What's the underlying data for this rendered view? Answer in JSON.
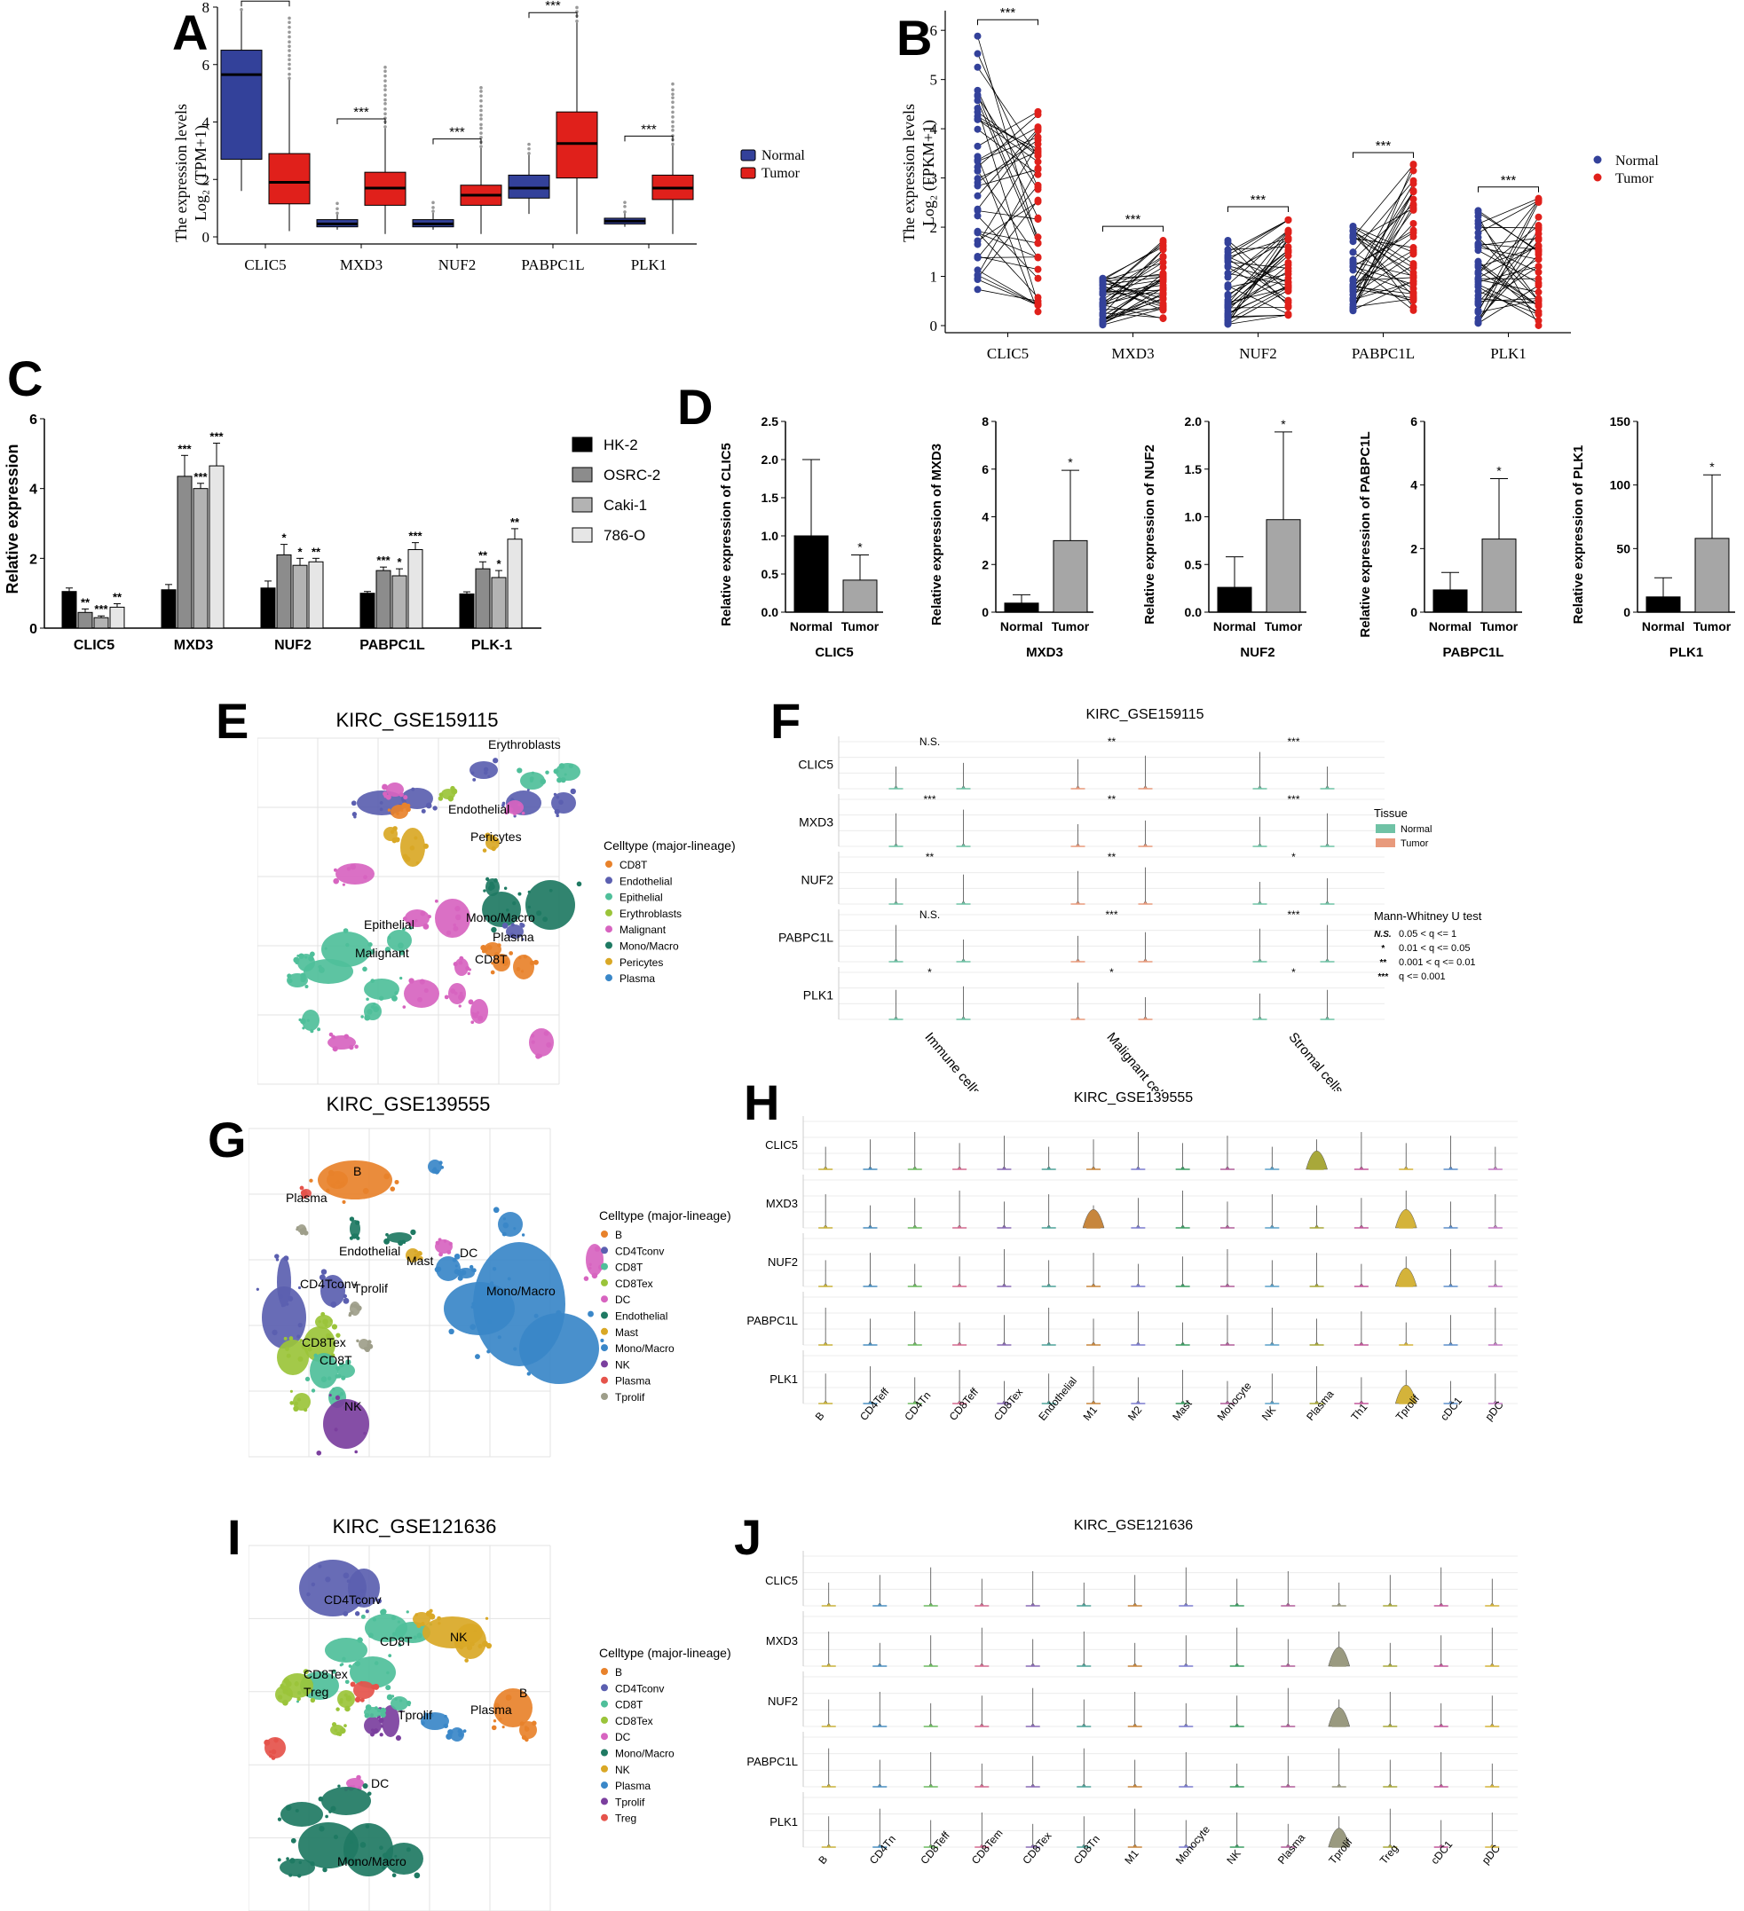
{
  "panel_labels": [
    "A",
    "B",
    "C",
    "D",
    "E",
    "F",
    "G",
    "H",
    "I",
    "J"
  ],
  "colors": {
    "normal": "#33419a",
    "tumor": "#e0201b",
    "bar_hk2": "#000000",
    "bar_osrc": "#8c8c8c",
    "bar_caki": "#b3b3b3",
    "bar_786": "#e6e6e6"
  },
  "chart_data": [
    {
      "id": "A",
      "type": "box",
      "ylabel_line1": "The expression  levels",
      "ylabel_line2": "Log₂ (TPM+1)",
      "categories": [
        "CLIC5",
        "MXD3",
        "NUF2",
        "PABPC1L",
        "PLK1"
      ],
      "yticks": [
        "0",
        "2",
        "4",
        "6",
        "8"
      ],
      "ylim": [
        0,
        8
      ],
      "legend": [
        "Normal",
        "Tumor"
      ],
      "significance": [
        "***",
        "***",
        "***",
        "***",
        "***"
      ],
      "series": [
        {
          "name": "Normal",
          "boxes": [
            [
              1.6,
              2.7,
              5.65,
              6.5,
              7.9
            ],
            [
              0.25,
              0.35,
              0.45,
              0.6,
              0.8
            ],
            [
              0.25,
              0.35,
              0.45,
              0.6,
              0.85
            ],
            [
              0.8,
              1.35,
              1.7,
              2.15,
              2.9
            ],
            [
              0.35,
              0.45,
              0.55,
              0.65,
              0.85
            ]
          ]
        },
        {
          "name": "Tumor",
          "boxes": [
            [
              0.2,
              1.15,
              1.9,
              2.9,
              5.5
            ],
            [
              0.1,
              1.1,
              1.7,
              2.25,
              3.8
            ],
            [
              0.1,
              1.1,
              1.45,
              1.8,
              3.1
            ],
            [
              0.1,
              2.05,
              3.25,
              4.35,
              7.5
            ],
            [
              0.1,
              1.3,
              1.7,
              2.15,
              3.2
            ]
          ]
        }
      ]
    },
    {
      "id": "B",
      "type": "paired-scatter",
      "ylabel_line1": "The expression  levels",
      "ylabel_line2": "Log₂ (FPKM+1)",
      "categories": [
        "CLIC5",
        "MXD3",
        "NUF2",
        "PABPC1L",
        "PLK1"
      ],
      "yticks": [
        "0",
        "1",
        "2",
        "3",
        "4",
        "5",
        "6"
      ],
      "ylim": [
        0,
        6.4
      ],
      "legend": [
        "Normal",
        "Tumor"
      ],
      "significance": [
        "***",
        "***",
        "***",
        "***",
        "***"
      ],
      "normal_range": [
        [
          0.7,
          6.0
        ],
        [
          0.0,
          1.0
        ],
        [
          0.0,
          1.8
        ],
        [
          0.3,
          2.1
        ],
        [
          0.0,
          2.4
        ]
      ],
      "tumor_range": [
        [
          0.1,
          4.6
        ],
        [
          0.1,
          1.8
        ],
        [
          0.2,
          2.2
        ],
        [
          0.3,
          3.3
        ],
        [
          0.0,
          2.6
        ]
      ]
    },
    {
      "id": "C",
      "type": "bar",
      "ylabel": "Relative expression",
      "categories": [
        "CLIC5",
        "MXD3",
        "NUF2",
        "PABPC1L",
        "PLK-1"
      ],
      "yticks": [
        "0",
        "2",
        "4",
        "6"
      ],
      "ylim": [
        0,
        6
      ],
      "series": [
        {
          "name": "HK-2",
          "values": [
            1.05,
            1.1,
            1.15,
            1.0,
            0.98
          ],
          "errors": [
            0.1,
            0.15,
            0.2,
            0.05,
            0.06
          ],
          "stars": [
            "",
            "",
            "",
            "",
            ""
          ]
        },
        {
          "name": "OSRC-2",
          "values": [
            0.45,
            4.35,
            2.1,
            1.65,
            1.7
          ],
          "errors": [
            0.1,
            0.6,
            0.3,
            0.1,
            0.2
          ],
          "stars": [
            "**",
            "***",
            "*",
            "***",
            "**"
          ]
        },
        {
          "name": "Caki-1",
          "values": [
            0.3,
            4.0,
            1.8,
            1.5,
            1.45
          ],
          "errors": [
            0.05,
            0.15,
            0.2,
            0.2,
            0.2
          ],
          "stars": [
            "***",
            "***",
            "*",
            "*",
            "*"
          ]
        },
        {
          "name": "786-O",
          "values": [
            0.6,
            4.65,
            1.9,
            2.25,
            2.55
          ],
          "errors": [
            0.1,
            0.65,
            0.1,
            0.2,
            0.3
          ],
          "stars": [
            "**",
            "***",
            "**",
            "***",
            "**"
          ]
        }
      ]
    },
    {
      "id": "D",
      "type": "bar",
      "subplots": [
        {
          "gene": "CLIC5",
          "ylabel": "Relative expression of CLIC5",
          "yticks": [
            "0.0",
            "0.5",
            "1.0",
            "1.5",
            "2.0",
            "2.5"
          ],
          "ylim": [
            0,
            2.5
          ],
          "categories": [
            "Normal",
            "Tumor"
          ],
          "values": [
            1.0,
            0.42
          ],
          "errors": [
            1.0,
            0.33
          ],
          "stars": [
            "",
            "*"
          ]
        },
        {
          "gene": "MXD3",
          "ylabel": "Relative expression of MXD3",
          "yticks": [
            "0",
            "2",
            "4",
            "6",
            "8"
          ],
          "ylim": [
            0,
            8
          ],
          "categories": [
            "Normal",
            "Tumor"
          ],
          "values": [
            0.38,
            3.0
          ],
          "errors": [
            0.35,
            2.95
          ],
          "stars": [
            "",
            "*"
          ]
        },
        {
          "gene": "NUF2",
          "ylabel": "Relative expression of NUF2",
          "yticks": [
            "0.0",
            "0.5",
            "1.0",
            "1.5",
            "2.0"
          ],
          "ylim": [
            0,
            2
          ],
          "categories": [
            "Normal",
            "Tumor"
          ],
          "values": [
            0.26,
            0.97
          ],
          "errors": [
            0.32,
            0.92
          ],
          "stars": [
            "",
            "*"
          ]
        },
        {
          "gene": "PABPC1L",
          "ylabel": "Relative expression of PABPC1L",
          "yticks": [
            "0",
            "2",
            "4",
            "6"
          ],
          "ylim": [
            0,
            6
          ],
          "categories": [
            "Normal",
            "Tumor"
          ],
          "values": [
            0.7,
            2.3
          ],
          "errors": [
            0.55,
            1.9
          ],
          "stars": [
            "",
            "*"
          ]
        },
        {
          "gene": "PLK1",
          "ylabel": "Relative expression of PLK1",
          "yticks": [
            "0",
            "50",
            "100",
            "150"
          ],
          "ylim": [
            0,
            150
          ],
          "categories": [
            "Normal",
            "Tumor"
          ],
          "values": [
            12,
            58
          ],
          "errors": [
            15,
            50
          ],
          "stars": [
            "",
            "*"
          ]
        }
      ]
    },
    {
      "id": "E",
      "type": "scatter",
      "title": "KIRC_GSE159115",
      "legend_title": "Celltype (major-lineage)",
      "legend": [
        "CD8T",
        "Endothelial",
        "Epithelial",
        "Erythroblasts",
        "Malignant",
        "Mono/Macro",
        "Pericytes",
        "Plasma"
      ],
      "legend_colors": [
        "#e8822b",
        "#5b5fb0",
        "#4fbf9a",
        "#9bc43a",
        "#d764c0",
        "#1f7a63",
        "#d9a826",
        "#3a87c8"
      ],
      "cluster_labels": [
        "Erythroblasts",
        "Endothelial",
        "Pericytes",
        "Epithelial",
        "Malignant",
        "Mono/Macro",
        "Plasma",
        "CD8T"
      ]
    },
    {
      "id": "F",
      "type": "violin",
      "title": "KIRC_GSE159115",
      "genes": [
        "CLIC5",
        "MXD3",
        "NUF2",
        "PABPC1L",
        "PLK1"
      ],
      "groups": [
        "Immune cells",
        "Malignant cells",
        "Stromal cells"
      ],
      "significance": [
        [
          "N.S.",
          "**",
          "***"
        ],
        [
          "***",
          "**",
          "***"
        ],
        [
          "**",
          "**",
          "*"
        ],
        [
          "N.S.",
          "***",
          "***"
        ],
        [
          "*",
          "*",
          "*"
        ]
      ],
      "legend_title": "Tissue",
      "legend": [
        "Normal",
        "Tumor"
      ],
      "test_title": "Mann-Whitney U test",
      "test_symbols": [
        "N.S.",
        "*",
        "**",
        "***"
      ],
      "test_levels": [
        "0.05 < q <= 1",
        "0.01 < q <= 0.05",
        "0.001 < q <= 0.01",
        "q <= 0.001"
      ]
    },
    {
      "id": "G",
      "type": "scatter",
      "title": "KIRC_GSE139555",
      "legend_title": "Celltype (major-lineage)",
      "legend": [
        "B",
        "CD4Tconv",
        "CD8T",
        "CD8Tex",
        "DC",
        "Endothelial",
        "Mast",
        "Mono/Macro",
        "NK",
        "Plasma",
        "Tprolif"
      ],
      "legend_colors": [
        "#e8822b",
        "#5b5fb0",
        "#4fbf9a",
        "#9bc43a",
        "#d764c0",
        "#1f7a63",
        "#d9a826",
        "#3a87c8",
        "#7b3f9e",
        "#e5534b",
        "#9e9e8a"
      ],
      "cluster_labels": [
        "B",
        "Plasma",
        "Endothelial",
        "DC",
        "Mast",
        "Mono/Macro",
        "CD4Tconv",
        "Tprolif",
        "CD8Tex",
        "CD8T",
        "NK"
      ]
    },
    {
      "id": "H",
      "type": "violin",
      "title": "KIRC_GSE139555",
      "genes": [
        "CLIC5",
        "MXD3",
        "NUF2",
        "PABPC1L",
        "PLK1"
      ],
      "celltypes": [
        "B",
        "CD4Teff",
        "CD4Tn",
        "CD8Teff",
        "CD8Tex",
        "Endothelial",
        "M1",
        "M2",
        "Mast",
        "Monocyte",
        "NK",
        "Plasma",
        "Th1",
        "Tprolif",
        "cDC1",
        "pDC"
      ]
    },
    {
      "id": "I",
      "type": "scatter",
      "title": "KIRC_GSE121636",
      "legend_title": "Celltype (major-lineage)",
      "legend": [
        "B",
        "CD4Tconv",
        "CD8T",
        "CD8Tex",
        "DC",
        "Mono/Macro",
        "NK",
        "Plasma",
        "Tprolif",
        "Treg"
      ],
      "legend_colors": [
        "#e8822b",
        "#5b5fb0",
        "#4fbf9a",
        "#9bc43a",
        "#d764c0",
        "#1f7a63",
        "#d9a826",
        "#3a87c8",
        "#7b3f9e",
        "#e5534b"
      ],
      "cluster_labels": [
        "CD4Tconv",
        "CD8T",
        "NK",
        "CD8Tex",
        "Treg",
        "Tprolif",
        "Plasma",
        "B",
        "DC",
        "Mono/Macro"
      ]
    },
    {
      "id": "J",
      "type": "violin",
      "title": "KIRC_GSE121636",
      "genes": [
        "CLIC5",
        "MXD3",
        "NUF2",
        "PABPC1L",
        "PLK1"
      ],
      "celltypes": [
        "B",
        "CD4Tn",
        "CD8Teff",
        "CD8Tem",
        "CD8Tex",
        "CD8Tn",
        "M1",
        "Monocyte",
        "NK",
        "Plasma",
        "Tprolif",
        "Treg",
        "cDC1",
        "pDC"
      ]
    }
  ]
}
